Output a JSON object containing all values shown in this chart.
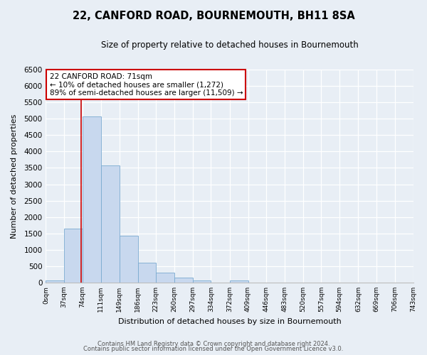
{
  "title": "22, CANFORD ROAD, BOURNEMOUTH, BH11 8SA",
  "subtitle": "Size of property relative to detached houses in Bournemouth",
  "xlabel": "Distribution of detached houses by size in Bournemouth",
  "ylabel": "Number of detached properties",
  "bin_edges": [
    0,
    37,
    74,
    111,
    149,
    186,
    223,
    260,
    297,
    334,
    372,
    409,
    446,
    483,
    520,
    557,
    594,
    632,
    669,
    706,
    743
  ],
  "bar_heights": [
    60,
    1650,
    5080,
    3580,
    1420,
    610,
    300,
    150,
    60,
    0,
    60,
    0,
    0,
    0,
    0,
    0,
    0,
    0,
    0,
    0
  ],
  "bar_color": "#c8d8ee",
  "bar_edge_color": "#7aaad0",
  "property_line_x": 71,
  "ylim": [
    0,
    6500
  ],
  "yticks": [
    0,
    500,
    1000,
    1500,
    2000,
    2500,
    3000,
    3500,
    4000,
    4500,
    5000,
    5500,
    6000,
    6500
  ],
  "annotation_title": "22 CANFORD ROAD: 71sqm",
  "annotation_line1": "← 10% of detached houses are smaller (1,272)",
  "annotation_line2": "89% of semi-detached houses are larger (11,509) →",
  "annotation_box_color": "#ffffff",
  "annotation_box_edge_color": "#cc0000",
  "footer_line1": "Contains HM Land Registry data © Crown copyright and database right 2024.",
  "footer_line2": "Contains public sector information licensed under the Open Government Licence v3.0.",
  "background_color": "#e8eef5",
  "plot_background_color": "#e8eef5",
  "grid_color": "#ffffff",
  "spine_color": "#bbbbbb",
  "tick_labels": [
    "0sqm",
    "37sqm",
    "74sqm",
    "111sqm",
    "149sqm",
    "186sqm",
    "223sqm",
    "260sqm",
    "297sqm",
    "334sqm",
    "372sqm",
    "409sqm",
    "446sqm",
    "483sqm",
    "520sqm",
    "557sqm",
    "594sqm",
    "632sqm",
    "669sqm",
    "706sqm",
    "743sqm"
  ],
  "title_fontsize": 10.5,
  "subtitle_fontsize": 8.5
}
